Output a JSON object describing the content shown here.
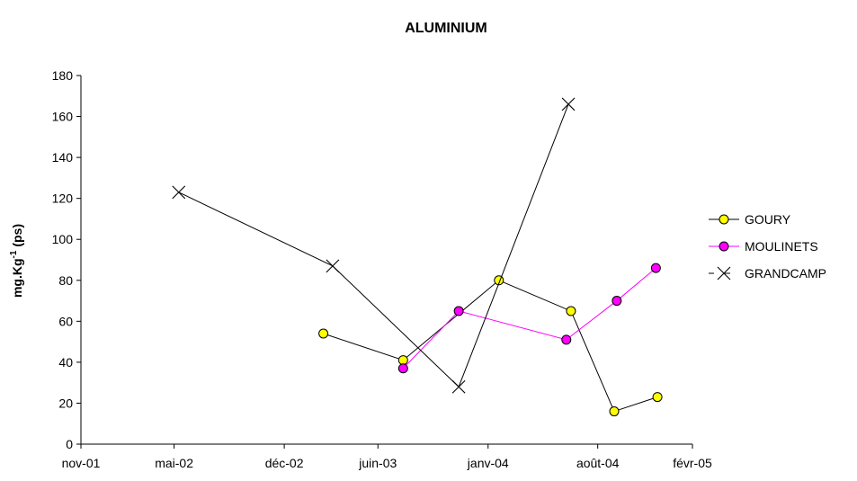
{
  "chart_data": {
    "type": "line",
    "title": "ALUMINIUM",
    "ylabel_main": "mg.Kg",
    "ylabel_sup": "-1",
    "ylabel_tail": " (ps)",
    "xlabel": "",
    "ylim": [
      0,
      180
    ],
    "yticks": [
      0,
      20,
      40,
      60,
      80,
      100,
      120,
      140,
      160,
      180
    ],
    "xlim": [
      "2001-11-01",
      "2005-02-01"
    ],
    "xticks": [
      {
        "date": "2001-11-01",
        "label": "nov-01"
      },
      {
        "date": "2002-05-01",
        "label": "mai-02"
      },
      {
        "date": "2002-12-01",
        "label": "déc-02"
      },
      {
        "date": "2003-06-01",
        "label": "juin-03"
      },
      {
        "date": "2004-01-01",
        "label": "janv-04"
      },
      {
        "date": "2004-08-01",
        "label": "août-04"
      },
      {
        "date": "2005-02-01",
        "label": "févr-05"
      }
    ],
    "grid": false,
    "legend_position": "right",
    "series": [
      {
        "name": "GOURY",
        "marker": "circle",
        "line_color": "#000000",
        "marker_fill": "#ffff00",
        "marker_stroke": "#000000",
        "points": [
          {
            "x": "2003-02-15",
            "y": 54
          },
          {
            "x": "2003-07-20",
            "y": 41
          },
          {
            "x": "2004-01-22",
            "y": 80
          },
          {
            "x": "2004-06-10",
            "y": 65
          },
          {
            "x": "2004-09-02",
            "y": 16
          },
          {
            "x": "2004-11-25",
            "y": 23
          }
        ]
      },
      {
        "name": "MOULINETS",
        "marker": "circle",
        "line_color": "#ff00ff",
        "marker_fill": "#ff00ff",
        "marker_stroke": "#000000",
        "points": [
          {
            "x": "2003-07-20",
            "y": 37
          },
          {
            "x": "2003-11-05",
            "y": 65
          },
          {
            "x": "2004-06-01",
            "y": 51
          },
          {
            "x": "2004-09-07",
            "y": 70
          },
          {
            "x": "2004-11-22",
            "y": 86
          }
        ]
      },
      {
        "name": "GRANDCAMP",
        "marker": "x",
        "line_color": "#000000",
        "marker_fill": "none",
        "marker_stroke": "#000000",
        "points": [
          {
            "x": "2002-05-10",
            "y": 123
          },
          {
            "x": "2003-03-05",
            "y": 87
          },
          {
            "x": "2003-11-05",
            "y": 28
          },
          {
            "x": "2004-06-05",
            "y": 166
          }
        ]
      }
    ]
  }
}
